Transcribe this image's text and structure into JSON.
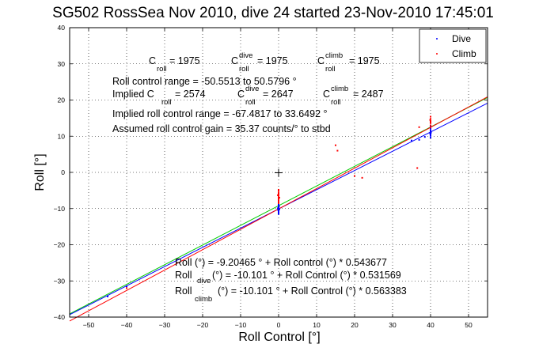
{
  "chart_data": {
    "type": "scatter",
    "title": "SG502 RossSea Nov 2010, dive 24 started 23-Nov-2010 17:45:01",
    "xlabel": "Roll Control [°]",
    "ylabel": "Roll [°]",
    "xlim": [
      -55,
      55
    ],
    "ylim": [
      -40,
      40
    ],
    "xticks": [
      -50,
      -40,
      -30,
      -20,
      -10,
      0,
      10,
      20,
      30,
      40,
      50
    ],
    "yticks": [
      -40,
      -30,
      -20,
      -10,
      0,
      10,
      20,
      30,
      40
    ],
    "grid": true,
    "legend_position": "top-right",
    "legend": [
      {
        "label": "Dive",
        "color": "#0000ff"
      },
      {
        "label": "Climb",
        "color": "#ff0000"
      }
    ],
    "series": [
      {
        "name": "Dive",
        "color": "#0000ff",
        "points": [
          [
            0,
            -9.2
          ],
          [
            0,
            -9.6
          ],
          [
            0,
            -10.0
          ],
          [
            0,
            -10.3
          ],
          [
            0,
            -10.6
          ],
          [
            0,
            -10.9
          ],
          [
            0,
            -11.2
          ],
          [
            0,
            -9.8
          ],
          [
            -0.1,
            -10.4
          ],
          [
            0.1,
            -9.4
          ],
          [
            0,
            -8.9
          ],
          [
            0,
            -11.5
          ],
          [
            0.2,
            -10.2
          ],
          [
            -0.2,
            -9.9
          ],
          [
            40,
            9.6
          ],
          [
            40,
            10.1
          ],
          [
            40,
            10.5
          ],
          [
            40,
            10.9
          ],
          [
            40,
            11.3
          ],
          [
            40,
            11.7
          ],
          [
            40,
            12.2
          ],
          [
            40,
            12.6
          ],
          [
            40.1,
            11.0
          ],
          [
            39.9,
            10.7
          ],
          [
            40,
            13.0
          ],
          [
            37,
            9.0
          ],
          [
            38.5,
            9.8
          ],
          [
            35,
            8.8
          ],
          [
            -40,
            -31.5
          ],
          [
            -45,
            -34.3
          ]
        ]
      },
      {
        "name": "Climb",
        "color": "#ff0000",
        "points": [
          [
            0,
            -5.2
          ],
          [
            0,
            -5.7
          ],
          [
            0,
            -6.1
          ],
          [
            0,
            -6.5
          ],
          [
            0,
            -6.9
          ],
          [
            0,
            -7.3
          ],
          [
            0,
            -7.7
          ],
          [
            0,
            -8.1
          ],
          [
            0,
            -8.5
          ],
          [
            -0.2,
            -6.3
          ],
          [
            0.2,
            -7.0
          ],
          [
            0,
            -4.8
          ],
          [
            40,
            12.4
          ],
          [
            40,
            13.0
          ],
          [
            40,
            13.6
          ],
          [
            40,
            14.2
          ],
          [
            40,
            14.8
          ],
          [
            40,
            15.4
          ],
          [
            40,
            13.9
          ],
          [
            39.9,
            14.5
          ],
          [
            15,
            7.5
          ],
          [
            15.5,
            6.0
          ],
          [
            20,
            -1.0
          ],
          [
            22,
            -1.5
          ],
          [
            36.5,
            1.2
          ],
          [
            37,
            12.5
          ],
          [
            -40,
            -32.0
          ]
        ]
      }
    ],
    "fits": [
      {
        "name": "fit",
        "color": "#00cc00",
        "intercept": -9.20465,
        "slope": 0.543677
      },
      {
        "name": "dive fit",
        "color": "#0000ff",
        "intercept": -10.101,
        "slope": 0.531569
      },
      {
        "name": "climb fit",
        "color": "#ff0000",
        "intercept": -10.101,
        "slope": 0.563383
      }
    ],
    "annotations": {
      "c_roll": {
        "a": "C",
        "a_sub": "roll",
        "a_sup": "",
        "a_val": " = 1975",
        "b": "C",
        "b_sub": "roll",
        "b_sup": "dive",
        "b_val": " = 1975",
        "c": "C",
        "c_sub": "roll",
        "c_sup": "climb",
        "c_val": " = 1975"
      },
      "range": "Roll control range = -50.5513 to 50.5796 °",
      "implied_c": {
        "a": "Implied C",
        "a_sub": "roll",
        "a_val": " = 2574",
        "b": "C",
        "b_sub": "roll",
        "b_sup": "dive",
        "b_val": " = 2647",
        "c": "C",
        "c_sub": "roll",
        "c_sup": "climb",
        "c_val": " = 2487"
      },
      "implied_range": "Implied roll control range = -67.4817 to 33.6492 °",
      "gain": "Assumed roll control gain = 35.37 counts/° to stbd",
      "eq1": "Roll (°) = -9.20465 ° + Roll control (°) * 0.543677",
      "eq2_a": "Roll",
      "eq2_sub": "dive",
      "eq2_b": " (°) = -10.101 ° + Roll Control (°) * 0.531569",
      "eq3_a": "Roll",
      "eq3_sub": "climb",
      "eq3_b": " (°) = -10.101 ° + Roll Control (°) * 0.563383"
    }
  }
}
